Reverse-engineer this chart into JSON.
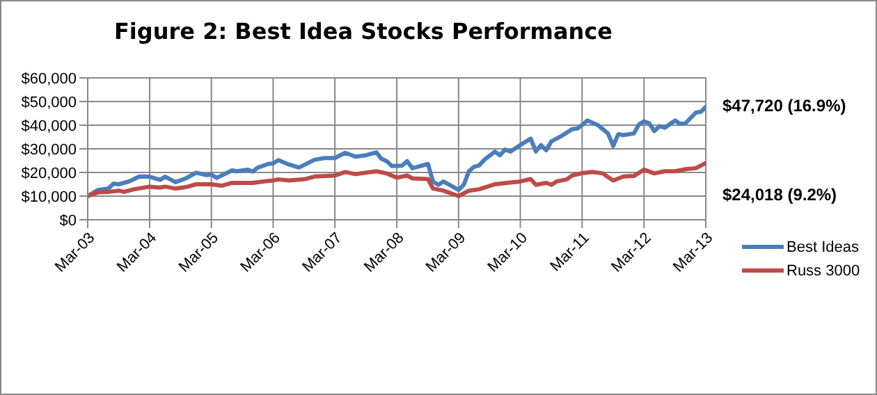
{
  "chart_data": {
    "type": "line",
    "title": "Figure 2: Best Idea Stocks Performance",
    "xlim": [
      "2003-03",
      "2013-03"
    ],
    "xticks": [
      {
        "value": "2003-03",
        "label": "Mar-03"
      },
      {
        "value": "2004-03",
        "label": "Mar-04"
      },
      {
        "value": "2005-03",
        "label": "Mar-05"
      },
      {
        "value": "2006-03",
        "label": "Mar-06"
      },
      {
        "value": "2007-03",
        "label": "Mar-07"
      },
      {
        "value": "2008-03",
        "label": "Mar-08"
      },
      {
        "value": "2009-03",
        "label": "Mar-09"
      },
      {
        "value": "2010-03",
        "label": "Mar-10"
      },
      {
        "value": "2011-03",
        "label": "Mar-11"
      },
      {
        "value": "2012-03",
        "label": "Mar-12"
      },
      {
        "value": "2013-03",
        "label": "Mar-13"
      }
    ],
    "ylim": [
      0,
      60000
    ],
    "yticks": [
      {
        "value": 0,
        "label": "$0"
      },
      {
        "value": 10000,
        "label": "$10,000"
      },
      {
        "value": 20000,
        "label": "$20,000"
      },
      {
        "value": 30000,
        "label": "$30,000"
      },
      {
        "value": 40000,
        "label": "$40,000"
      },
      {
        "value": 50000,
        "label": "$50,000"
      },
      {
        "value": 60000,
        "label": "$60,000"
      }
    ],
    "grid": true,
    "legend": "right",
    "marker": "none",
    "line_style": "solid",
    "series": [
      {
        "name": "Best Ideas",
        "color": "#4a7ebb",
        "x": [
          "2003-03",
          "2003-05",
          "2003-07",
          "2003-08",
          "2003-09",
          "2003-11",
          "2004-01",
          "2004-03",
          "2004-05",
          "2004-06",
          "2004-08",
          "2004-10",
          "2004-12",
          "2005-02",
          "2005-03",
          "2005-04",
          "2005-07",
          "2005-08",
          "2005-10",
          "2005-11",
          "2005-12",
          "2006-02",
          "2006-03",
          "2006-04",
          "2006-06",
          "2006-08",
          "2006-09",
          "2006-11",
          "2007-01",
          "2007-03",
          "2007-05",
          "2007-07",
          "2007-09",
          "2007-11",
          "2007-12",
          "2008-01",
          "2008-02",
          "2008-04",
          "2008-05",
          "2008-06",
          "2008-09",
          "2008-10",
          "2008-11",
          "2008-12",
          "2009-03",
          "2009-04",
          "2009-05",
          "2009-06",
          "2009-07",
          "2009-08",
          "2009-10",
          "2009-11",
          "2009-12",
          "2010-01",
          "2010-03",
          "2010-05",
          "2010-06",
          "2010-07",
          "2010-08",
          "2010-09",
          "2010-11",
          "2011-01",
          "2011-02",
          "2011-03",
          "2011-04",
          "2011-06",
          "2011-08",
          "2011-09",
          "2011-10",
          "2011-11",
          "2012-01",
          "2012-02",
          "2012-03",
          "2012-04",
          "2012-05",
          "2012-06",
          "2012-07",
          "2012-09",
          "2012-10",
          "2012-11",
          "2013-01",
          "2013-02",
          "2013-03"
        ],
        "values": [
          10000,
          12600,
          13200,
          15300,
          15000,
          16200,
          18300,
          18200,
          16900,
          18200,
          15900,
          17500,
          19900,
          18900,
          19100,
          17700,
          20900,
          20500,
          21200,
          20400,
          22100,
          23600,
          23800,
          25200,
          23400,
          22100,
          23200,
          25400,
          26100,
          26100,
          28300,
          26700,
          27300,
          28500,
          25800,
          24800,
          22700,
          22900,
          24800,
          21800,
          23600,
          16200,
          14800,
          16200,
          12600,
          14800,
          20500,
          22400,
          23000,
          25400,
          28800,
          27300,
          29700,
          28800,
          31600,
          34300,
          28900,
          31600,
          29400,
          33200,
          35500,
          38300,
          38600,
          40100,
          42000,
          40100,
          36500,
          31200,
          36200,
          35800,
          36500,
          40400,
          41600,
          40800,
          37500,
          39600,
          38900,
          42000,
          40500,
          40800,
          45300,
          45700,
          47720
        ]
      },
      {
        "name": "Russ 3000",
        "color": "#be4b48",
        "x": [
          "2003-03",
          "2003-05",
          "2003-07",
          "2003-09",
          "2003-10",
          "2003-12",
          "2004-03",
          "2004-05",
          "2004-06",
          "2004-08",
          "2004-10",
          "2004-12",
          "2005-03",
          "2005-05",
          "2005-07",
          "2005-11",
          "2006-01",
          "2006-03",
          "2006-04",
          "2006-06",
          "2006-09",
          "2006-11",
          "2007-03",
          "2007-05",
          "2007-07",
          "2007-11",
          "2008-01",
          "2008-03",
          "2008-05",
          "2008-06",
          "2008-09",
          "2008-10",
          "2008-12",
          "2009-03",
          "2009-05",
          "2009-07",
          "2009-10",
          "2009-12",
          "2010-03",
          "2010-05",
          "2010-06",
          "2010-08",
          "2010-09",
          "2010-10",
          "2010-12",
          "2011-01",
          "2011-03",
          "2011-05",
          "2011-07",
          "2011-09",
          "2011-11",
          "2012-01",
          "2012-03",
          "2012-05",
          "2012-07",
          "2012-09",
          "2012-11",
          "2013-01",
          "2013-03"
        ],
        "values": [
          10000,
          11600,
          11800,
          12300,
          11800,
          12900,
          14000,
          13600,
          14000,
          13200,
          13800,
          15000,
          15000,
          14400,
          15600,
          15600,
          16200,
          16600,
          17100,
          16600,
          17100,
          18300,
          18700,
          20200,
          19300,
          20500,
          19600,
          17800,
          18700,
          17500,
          17200,
          13200,
          12300,
          10000,
          12300,
          12900,
          15000,
          15500,
          16200,
          17200,
          14800,
          15600,
          14800,
          16200,
          17100,
          18700,
          19700,
          20200,
          19600,
          16600,
          18300,
          18500,
          21200,
          19600,
          20500,
          20500,
          21400,
          21800,
          24018
        ]
      }
    ],
    "annotations": [
      {
        "text": "$47,720 (16.9%)",
        "x": "2013-03",
        "y": 47720
      },
      {
        "text": "$24,018 (9.2%)",
        "x": "2013-03",
        "y": 24018
      }
    ]
  }
}
